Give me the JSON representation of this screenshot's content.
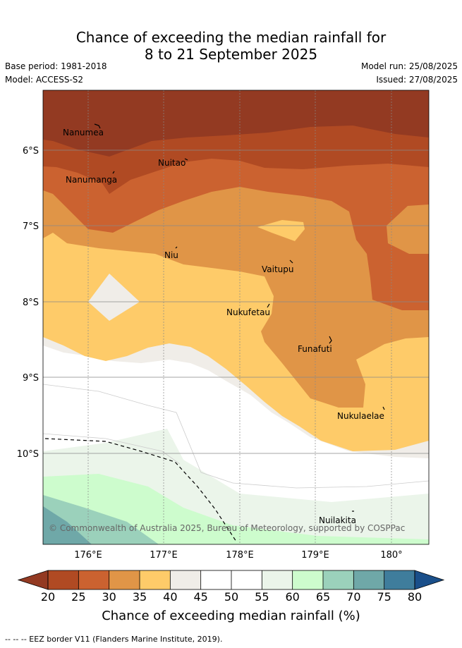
{
  "title_line1": "Chance of exceeding the median rainfall for",
  "title_line2": "8 to 21 September 2025",
  "meta": {
    "base_period": "Base period: 1981-2018",
    "model": "Model: ACCESS-S2",
    "model_run": "Model run: 25/08/2025",
    "issued": "Issued: 27/08/2025"
  },
  "axes": {
    "lat_labels": [
      "6°S",
      "7°S",
      "8°S",
      "9°S",
      "10°S"
    ],
    "lon_labels": [
      "176°E",
      "177°E",
      "178°E",
      "179°E",
      "180°"
    ]
  },
  "places": [
    {
      "name": "Nanumea"
    },
    {
      "name": "Nuitao"
    },
    {
      "name": "Nanumanga"
    },
    {
      "name": "Niu"
    },
    {
      "name": "Vaitupu"
    },
    {
      "name": "Nukufetau"
    },
    {
      "name": "Funafuti"
    },
    {
      "name": "Nukulaelae"
    },
    {
      "name": "Nuilakita"
    }
  ],
  "copyright": "© Commonwealth of Australia 2025, Bureau of Meteorology, supported by COSPPac",
  "colorbar": {
    "ticks": [
      "20",
      "25",
      "30",
      "35",
      "40",
      "45",
      "50",
      "55",
      "60",
      "65",
      "70",
      "75",
      "80"
    ],
    "colors": [
      "#b04a23",
      "#cb6230",
      "#e09547",
      "#fecb69",
      "#f0ede8",
      "#ffffff",
      "#ffffff",
      "#ebf5ea",
      "#cdfccd",
      "#9bd1bb",
      "#6fa8a8",
      "#3f7d9c"
    ],
    "low_color": "#933a22",
    "high_color": "#1a4f8a",
    "title": "Chance of exceeding median rainfall (%)"
  },
  "footer": "-- -- -- EEZ border V11 (Flanders Marine Institute, 2019)."
}
